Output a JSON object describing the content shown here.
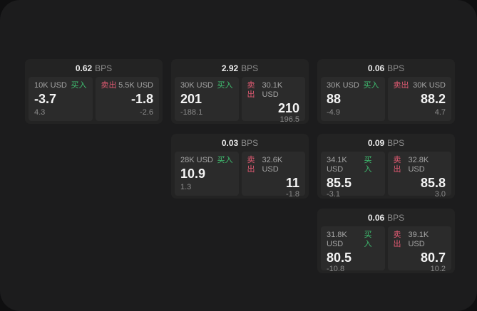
{
  "labels": {
    "bps_unit": "BPS",
    "buy": "买入",
    "sell": "卖出"
  },
  "colors": {
    "surface_bg": "#1c1c1d",
    "card_bg": "#232323",
    "tile_bg": "#2b2b2b",
    "buy_green": "#3fbf70",
    "sell_red": "#e05a72"
  },
  "cards": [
    {
      "bps": "0.62",
      "buy": {
        "amount": "10K USD",
        "price": "-3.7",
        "delta": "4.3"
      },
      "sell": {
        "amount": "5.5K USD",
        "price": "-1.8",
        "delta": "-2.6"
      }
    },
    {
      "bps": "2.92",
      "buy": {
        "amount": "30K USD",
        "price": "201",
        "delta": "-188.1"
      },
      "sell": {
        "amount": "30.1K USD",
        "price": "210",
        "delta": "196.5"
      }
    },
    {
      "bps": "0.06",
      "buy": {
        "amount": "30K USD",
        "price": "88",
        "delta": "-4.9"
      },
      "sell": {
        "amount": "30K USD",
        "price": "88.2",
        "delta": "4.7"
      }
    },
    {
      "bps": "0.03",
      "buy": {
        "amount": "28K USD",
        "price": "10.9",
        "delta": "1.3"
      },
      "sell": {
        "amount": "32.6K USD",
        "price": "11",
        "delta": "-1.8"
      }
    },
    {
      "bps": "0.09",
      "buy": {
        "amount": "34.1K USD",
        "price": "85.5",
        "delta": "-3.1"
      },
      "sell": {
        "amount": "32.8K USD",
        "price": "85.8",
        "delta": "3.0"
      }
    },
    {
      "bps": "0.06",
      "buy": {
        "amount": "31.8K USD",
        "price": "80.5",
        "delta": "-10.8"
      },
      "sell": {
        "amount": "39.1K USD",
        "price": "80.7",
        "delta": "10.2"
      }
    }
  ]
}
